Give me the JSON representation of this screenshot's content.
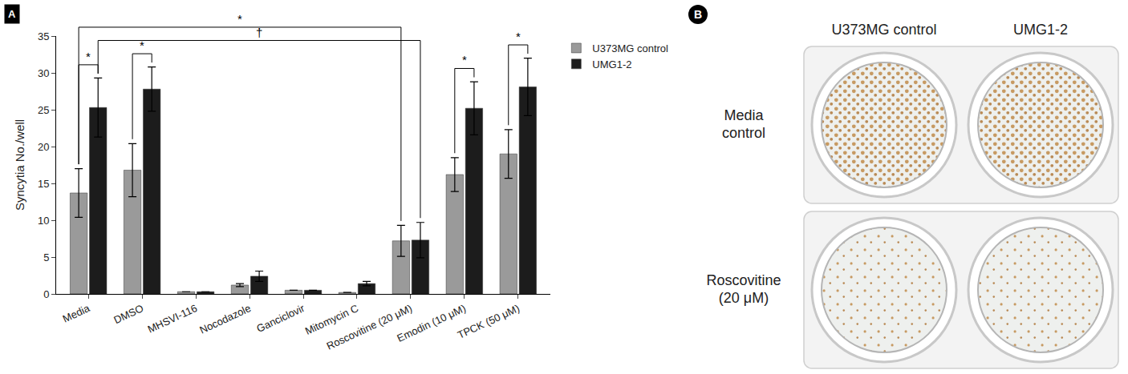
{
  "chart_data": {
    "type": "bar",
    "categories": [
      "Media",
      "DMSO",
      "MHSVI-116",
      "Nocodazole",
      "Ganciclovir",
      "Mitomycin C",
      "Roscovitine (20 μM)",
      "Emodin (10 μM)",
      "TPCK (50 μM)"
    ],
    "series": [
      {
        "name": "U373MG control",
        "color": "#9a9a9a",
        "values": [
          13.7,
          16.8,
          0.3,
          1.2,
          0.5,
          0.2,
          7.2,
          16.2,
          19.0
        ],
        "errors": [
          3.3,
          3.6,
          0,
          0.2,
          0,
          0,
          2.1,
          2.3,
          3.3
        ]
      },
      {
        "name": "UMG1-2",
        "color": "#1c1c1c",
        "values": [
          25.3,
          27.8,
          0.3,
          2.4,
          0.5,
          1.4,
          7.3,
          25.2,
          28.1
        ],
        "errors": [
          4.0,
          3.0,
          0,
          0.7,
          0,
          0.3,
          2.4,
          3.6,
          3.9
        ]
      }
    ],
    "y_label": "Syncytia No./well",
    "ylim": [
      0,
      35
    ],
    "yticks": [
      0,
      5,
      10,
      15,
      20,
      25,
      30,
      35
    ],
    "grid": false,
    "legend": "right",
    "significance": [
      {
        "from": [
          0,
          0
        ],
        "to": [
          0,
          1
        ],
        "label": "*"
      },
      {
        "from": [
          1,
          0
        ],
        "to": [
          1,
          1
        ],
        "label": "*"
      },
      {
        "from": [
          7,
          0
        ],
        "to": [
          7,
          1
        ],
        "label": "*"
      },
      {
        "from": [
          8,
          0
        ],
        "to": [
          8,
          1
        ],
        "label": "*"
      },
      {
        "from": [
          0,
          1
        ],
        "to": [
          6,
          1
        ],
        "label": "†"
      },
      {
        "from": [
          0,
          0
        ],
        "to": [
          6,
          0
        ],
        "label": "*"
      }
    ]
  },
  "panel_labels": [
    "A",
    "B"
  ],
  "panel_b": {
    "columns": [
      "U373MG control",
      "UMG1-2"
    ],
    "rows": [
      "Media control",
      "Roscovitine (20 μM)"
    ]
  }
}
